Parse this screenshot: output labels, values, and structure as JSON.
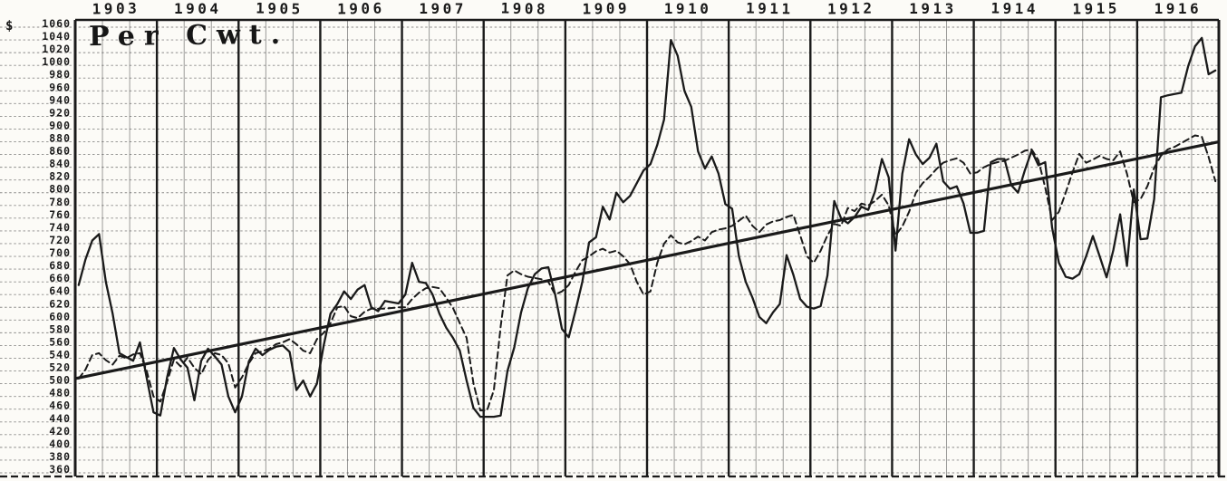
{
  "page": {
    "paper_color": "#fcfbf7",
    "ink_color": "#1a1a1a"
  },
  "header": {
    "currency_symbol": "$",
    "unit_label": "Per Cwt."
  },
  "chart_data": {
    "type": "line",
    "title": "Per Cwt.",
    "xlabel": "",
    "ylabel": "",
    "x_years": [
      1903,
      1904,
      1905,
      1906,
      1907,
      1908,
      1909,
      1910,
      1911,
      1912,
      1913,
      1914,
      1915,
      1916
    ],
    "months_per_year": 12,
    "ylim": [
      360,
      1060
    ],
    "ytick_step": 20,
    "grid": {
      "on": true,
      "minor_vertical_divisions_per_year": 3
    },
    "legend": "none",
    "series": [
      {
        "name": "solid_line",
        "style": "solid",
        "values": [
          655,
          695,
          725,
          735,
          660,
          610,
          548,
          542,
          536,
          565,
          509,
          455,
          450,
          510,
          556,
          538,
          525,
          474,
          536,
          555,
          543,
          530,
          480,
          455,
          480,
          535,
          555,
          545,
          553,
          558,
          560,
          550,
          490,
          505,
          480,
          500,
          560,
          610,
          625,
          645,
          633,
          648,
          655,
          620,
          614,
          630,
          628,
          626,
          640,
          690,
          660,
          658,
          640,
          610,
          588,
          572,
          552,
          505,
          462,
          448,
          448,
          448,
          450,
          520,
          557,
          612,
          650,
          672,
          681,
          683,
          640,
          586,
          573,
          615,
          660,
          722,
          730,
          778,
          758,
          800,
          785,
          795,
          815,
          835,
          845,
          875,
          915,
          1040,
          1015,
          960,
          935,
          865,
          838,
          857,
          830,
          782,
          775,
          700,
          660,
          635,
          605,
          595,
          612,
          625,
          702,
          671,
          633,
          621,
          618,
          622,
          670,
          787,
          760,
          752,
          762,
          778,
          773,
          802,
          853,
          824,
          709,
          830,
          884,
          860,
          845,
          855,
          877,
          818,
          806,
          810,
          783,
          737,
          737,
          740,
          848,
          853,
          853,
          812,
          800,
          835,
          866,
          843,
          848,
          745,
          690,
          668,
          665,
          672,
          700,
          732,
          700,
          667,
          710,
          766,
          685,
          805,
          727,
          728,
          790,
          950,
          953,
          955,
          957,
          999,
          1030,
          1043,
          986,
          992
        ]
      },
      {
        "name": "dashed_line",
        "style": "dashed",
        "values": [
          508,
          522,
          545,
          548,
          537,
          530,
          544,
          540,
          546,
          548,
          520,
          480,
          472,
          503,
          538,
          527,
          541,
          525,
          515,
          537,
          548,
          545,
          532,
          494,
          510,
          532,
          548,
          551,
          555,
          562,
          565,
          570,
          562,
          552,
          548,
          570,
          580,
          595,
          620,
          622,
          606,
          603,
          613,
          618,
          618,
          618,
          619,
          620,
          620,
          633,
          643,
          650,
          652,
          650,
          635,
          619,
          595,
          572,
          501,
          458,
          458,
          490,
          590,
          670,
          678,
          672,
          668,
          666,
          664,
          660,
          640,
          645,
          655,
          676,
          694,
          700,
          708,
          712,
          706,
          709,
          700,
          688,
          660,
          640,
          645,
          690,
          720,
          733,
          722,
          719,
          724,
          731,
          725,
          738,
          742,
          744,
          748,
          756,
          764,
          748,
          738,
          750,
          755,
          757,
          762,
          765,
          733,
          700,
          690,
          709,
          733,
          751,
          748,
          776,
          771,
          783,
          780,
          787,
          797,
          780,
          733,
          747,
          770,
          800,
          815,
          825,
          837,
          847,
          851,
          854,
          847,
          830,
          832,
          840,
          845,
          848,
          850,
          855,
          860,
          866,
          868,
          851,
          808,
          757,
          770,
          800,
          832,
          861,
          847,
          852,
          858,
          853,
          851,
          865,
          830,
          785,
          790,
          810,
          839,
          858,
          868,
          872,
          878,
          884,
          890,
          888,
          856,
          818
        ]
      }
    ],
    "trend_line": {
      "name": "trend_line",
      "style": "straight",
      "start_value": 508,
      "end_value": 880
    }
  }
}
